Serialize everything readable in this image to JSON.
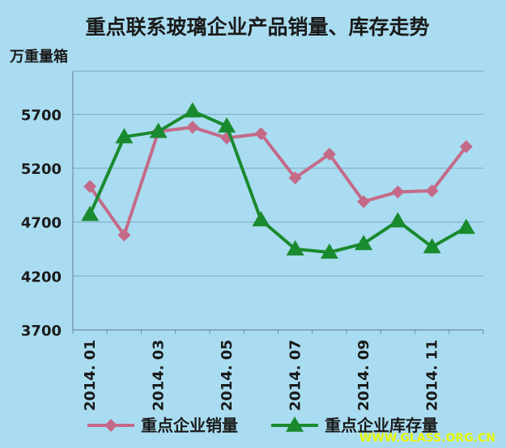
{
  "chart_data": {
    "type": "line",
    "title": "重点联系玻璃企业产品销量、库存走势",
    "ylabel": "万重量箱",
    "ylim": [
      3700,
      6100
    ],
    "yticks": [
      3700,
      4200,
      4700,
      5200,
      5700
    ],
    "x": [
      "2014.01",
      "2014.02",
      "2014.03",
      "2014.04",
      "2014.05",
      "2014.06",
      "2014.07",
      "2014.08",
      "2014.09",
      "2014.10",
      "2014.11",
      "2014.12"
    ],
    "xtick_labels": [
      "2014. 01",
      "2014. 03",
      "2014. 05",
      "2014. 07",
      "2014. 09",
      "2014. 11"
    ],
    "xtick_index": [
      0,
      2,
      4,
      6,
      8,
      10
    ],
    "grid": true,
    "legend_position": "bottom",
    "series": [
      {
        "name": "重点企业销量",
        "color": "#c46a88",
        "marker": "diamond",
        "values": [
          5030,
          4580,
          5540,
          5580,
          5480,
          5520,
          5110,
          5330,
          4890,
          4980,
          4990,
          5400
        ]
      },
      {
        "name": "重点企业库存量",
        "color": "#1a8a2e",
        "marker": "triangle",
        "values": [
          4770,
          5490,
          5540,
          5730,
          5590,
          4720,
          4450,
          4420,
          4500,
          4710,
          4470,
          4650
        ]
      }
    ]
  },
  "watermark": "WWW.GLASS.ORG.CN"
}
